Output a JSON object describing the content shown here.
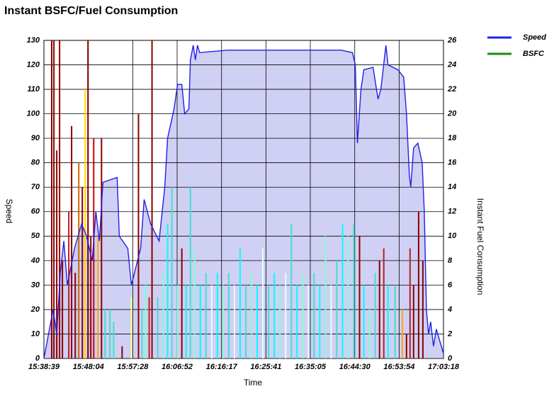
{
  "chart_data": {
    "type": "line",
    "title": "Instant BSFC/Fuel Consumption",
    "x_label": "Time",
    "y_label": "Speed",
    "y2_label": "Instant Fuel Consumption",
    "grid": true,
    "legend": "top-right",
    "xlim": [
      56319,
      61398
    ],
    "xticks": [
      {
        "value": 56319,
        "label": "15:38:39"
      },
      {
        "value": 56884,
        "label": "15:48:04"
      },
      {
        "value": 57448,
        "label": "15:57:28"
      },
      {
        "value": 58012,
        "label": "16:06:52"
      },
      {
        "value": 58577,
        "label": "16:16:17"
      },
      {
        "value": 59141,
        "label": "16:25:41"
      },
      {
        "value": 59705,
        "label": "16:35:05"
      },
      {
        "value": 60270,
        "label": "16:44:30"
      },
      {
        "value": 60834,
        "label": "16:53:54"
      },
      {
        "value": 61398,
        "label": "17:03:18"
      }
    ],
    "ylim": [
      0,
      130
    ],
    "yticks": [
      0,
      10,
      20,
      30,
      40,
      50,
      60,
      70,
      80,
      90,
      100,
      110,
      120,
      130
    ],
    "y2lim": [
      0,
      26
    ],
    "y2ticks": [
      0,
      2,
      4,
      6,
      8,
      10,
      12,
      14,
      16,
      18,
      20,
      22,
      24,
      26
    ],
    "series": [
      {
        "name": "Speed",
        "color": "#2020e8",
        "fill": "#c8c8f2",
        "axis": "y",
        "x": [
          56319,
          56436,
          56482,
          56527,
          56572,
          56617,
          56708,
          56798,
          56861,
          56933,
          56979,
          57024,
          57069,
          57250,
          57277,
          57385,
          57431,
          57548,
          57593,
          57675,
          57783,
          57855,
          57891,
          57973,
          58018,
          58072,
          58108,
          58162,
          58181,
          58217,
          58244,
          58271,
          58298,
          58650,
          59374,
          60097,
          60241,
          60277,
          60304,
          60349,
          60386,
          60503,
          60566,
          60602,
          60666,
          60693,
          60819,
          60892,
          60928,
          60964,
          60982,
          61018,
          61072,
          61127,
          61154,
          61181,
          61208,
          61235,
          61271,
          61307,
          61343,
          61398
        ],
        "values": [
          0,
          20,
          10,
          35,
          48,
          30,
          45,
          55,
          50,
          40,
          60,
          48,
          72,
          74,
          50,
          45,
          30,
          45,
          65,
          55,
          48,
          70,
          90,
          102,
          112,
          112,
          100,
          102,
          122,
          128,
          122,
          128,
          125,
          126,
          126,
          126,
          125,
          120,
          88,
          110,
          118,
          119,
          106,
          110,
          128,
          120,
          118,
          115,
          100,
          75,
          70,
          86,
          88,
          80,
          60,
          20,
          10,
          15,
          5,
          12,
          8,
          2
        ]
      },
      {
        "name": "BSFC",
        "color": "#1a8a1a",
        "axis": "y2",
        "x": [
          56418,
          56446,
          56482,
          56518,
          56554,
          56635,
          56671,
          56717,
          56762,
          56807,
          56843,
          56879,
          56915,
          56952,
          57006,
          57051,
          57096,
          57159,
          57205,
          57313,
          57431,
          57521,
          57566,
          57611,
          57657,
          57693,
          57765,
          57837,
          57891,
          57946,
          58018,
          58072,
          58126,
          58181,
          58235,
          58307,
          58379,
          58452,
          58524,
          58596,
          58669,
          58741,
          58813,
          58886,
          58958,
          59030,
          59102,
          59175,
          59247,
          59319,
          59392,
          59464,
          59536,
          59609,
          59681,
          59753,
          59825,
          59898,
          59970,
          60042,
          60115,
          60187,
          60259,
          60331,
          60386,
          60458,
          60530,
          60585,
          60639,
          60693,
          60783,
          60874,
          60928,
          60973,
          61018,
          61082,
          61136
        ],
        "values": [
          26,
          26,
          17,
          26,
          8,
          12,
          19,
          7,
          16,
          14,
          22,
          26,
          10,
          18,
          10,
          18,
          4,
          4,
          3,
          1,
          5,
          20,
          4,
          6,
          5,
          26,
          5,
          7,
          11,
          14,
          6,
          9,
          6,
          14,
          9,
          6,
          7,
          6,
          7,
          6,
          7,
          6,
          9,
          6,
          7,
          6,
          9,
          6,
          7,
          6,
          7,
          11,
          6,
          7,
          6,
          7,
          6,
          10,
          6,
          8,
          11,
          10,
          11,
          10,
          6,
          4,
          7,
          8,
          9,
          6,
          6,
          4,
          2,
          9,
          6,
          12,
          8
        ],
        "bar_colors": [
          "#8b0000",
          "#8b0000",
          "#8b0000",
          "#a00000",
          "#8b0000",
          "#b22222",
          "#8b0000",
          "#8b0000",
          "#cc6600",
          "#8b0000",
          "#ffd700",
          "#8b0000",
          "#8b0000",
          "#cc0000",
          "#ffa500",
          "#8b0000",
          "#40e0d0",
          "#40e0d0",
          "#40e0d0",
          "#8b0000",
          "#ffff80",
          "#8b0000",
          "#40e0d0",
          "#7fffd4",
          "#b22222",
          "#8b0000",
          "#40e0d0",
          "#7fffd4",
          "#00ffff",
          "#40e0d0",
          "#7fffd4",
          "#8b0000",
          "#00ffff",
          "#40e0d0",
          "#7fffd4",
          "#00ffff",
          "#40e0d0",
          "#e0ffff",
          "#00ffff",
          "#7fffd4",
          "#40e0d0",
          "#e0ffff",
          "#00ffff",
          "#40e0d0",
          "#7fffd4",
          "#00ffff",
          "#e0ffff",
          "#40e0d0",
          "#00ffff",
          "#7fffd4",
          "#e0ffff",
          "#40e0d0",
          "#00ffff",
          "#7fffd4",
          "#e0ffff",
          "#40e0d0",
          "#00ffff",
          "#7fffd4",
          "#e0ffff",
          "#40e0d0",
          "#00ffff",
          "#7fffd4",
          "#40e0d0",
          "#8b0000",
          "#00ffff",
          "#7fffd4",
          "#40e0d0",
          "#8b0000",
          "#b22222",
          "#00ffff",
          "#40e0d0",
          "#ffa500",
          "#8b0000",
          "#b22222",
          "#8b0000",
          "#8b0000",
          "#8b0000"
        ]
      }
    ]
  }
}
